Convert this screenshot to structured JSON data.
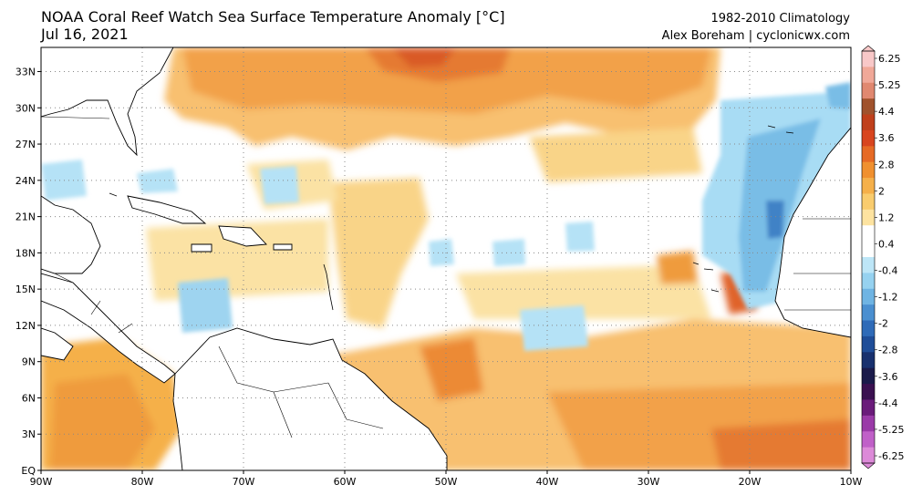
{
  "header": {
    "title": "NOAA Coral Reef Watch Sea Surface Temperature Anomaly [°C]",
    "date": "Jul 16, 2021",
    "climatology": "1982-2010 Climatology",
    "credit": "Alex Boreham | cyclonicwx.com"
  },
  "map": {
    "lat_labels": [
      "33N",
      "30N",
      "27N",
      "24N",
      "21N",
      "18N",
      "15N",
      "12N",
      "9N",
      "6N",
      "3N",
      "EQ"
    ],
    "lon_labels": [
      "90W",
      "80W",
      "70W",
      "60W",
      "50W",
      "40W",
      "30W",
      "20W",
      "10W"
    ],
    "lat_range": [
      0,
      35
    ],
    "lon_range": [
      -90,
      -10
    ]
  },
  "colorbar": {
    "labels": [
      "6.25",
      "5.25",
      "4.4",
      "3.6",
      "2.8",
      "2",
      "1.2",
      "0.4",
      "-0.4",
      "-1.2",
      "-2",
      "-2.8",
      "-3.6",
      "-4.4",
      "-5.25",
      "-6.25"
    ],
    "colors": [
      "#f8c8c8",
      "#f0a898",
      "#e08870",
      "#a0522d",
      "#c0401c",
      "#d8451f",
      "#e66a25",
      "#f0902f",
      "#f5b04a",
      "#f9cc6e",
      "#fde3a0",
      "#ffffff",
      "#ffffff",
      "#bde6f7",
      "#96d2f0",
      "#6fb4e3",
      "#4a8fd0",
      "#2f6bb8",
      "#1f4d98",
      "#18306e",
      "#1a1a4a",
      "#3a1050",
      "#6a1b7a",
      "#9a3aa8",
      "#c060c8",
      "#dc8ad8"
    ]
  }
}
